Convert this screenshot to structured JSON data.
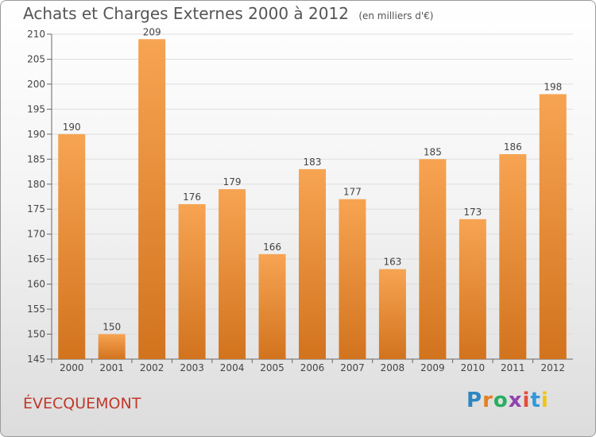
{
  "header": {
    "title": "Achats et Charges Externes 2000 à 2012",
    "unit": "(en milliers d'€)"
  },
  "footer": {
    "commune": "ÉVECQUEMONT",
    "logo_text": "Proxiti"
  },
  "colors": {
    "bar_top": "#f7a452",
    "bar_bottom": "#d2731e",
    "grid": "#dddddd",
    "axis": "#666666"
  },
  "logo_colors": [
    "#2e86c1",
    "#e67e22",
    "#27ae60",
    "#8e44ad",
    "#e74c3c",
    "#3498db",
    "#f1c40f"
  ],
  "chart_data": {
    "type": "bar",
    "categories": [
      "2000",
      "2001",
      "2002",
      "2003",
      "2004",
      "2005",
      "2006",
      "2007",
      "2008",
      "2009",
      "2010",
      "2011",
      "2012"
    ],
    "values": [
      190,
      150,
      209,
      176,
      179,
      166,
      183,
      177,
      163,
      185,
      173,
      186,
      198
    ],
    "ylim": [
      145,
      210
    ],
    "yticks": [
      145,
      150,
      155,
      160,
      165,
      170,
      175,
      180,
      185,
      190,
      195,
      200,
      205,
      210
    ],
    "grid": true,
    "data_labels": true
  }
}
